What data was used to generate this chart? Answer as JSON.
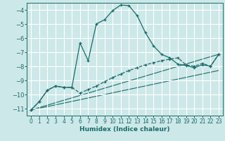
{
  "xlabel": "Humidex (Indice chaleur)",
  "bg_color": "#cde8e8",
  "grid_color": "#b8d8d8",
  "line_color": "#1a6b6b",
  "xlim": [
    -0.5,
    23.5
  ],
  "ylim": [
    -11.5,
    -3.5
  ],
  "yticks": [
    -11,
    -10,
    -9,
    -8,
    -7,
    -6,
    -5,
    -4
  ],
  "xticks": [
    0,
    1,
    2,
    3,
    4,
    5,
    6,
    7,
    8,
    9,
    10,
    11,
    12,
    13,
    14,
    15,
    16,
    17,
    18,
    19,
    20,
    21,
    22,
    23
  ],
  "main_curve_x": [
    0,
    1,
    2,
    3,
    4,
    5,
    6,
    7,
    8,
    9,
    10,
    11,
    12,
    13,
    14,
    15,
    16,
    17,
    18,
    19,
    20,
    21,
    22,
    23
  ],
  "main_curve_y": [
    -11.1,
    -10.5,
    -9.7,
    -9.4,
    -9.5,
    -9.5,
    -6.35,
    -7.6,
    -5.0,
    -4.7,
    -4.05,
    -3.65,
    -3.7,
    -4.4,
    -5.6,
    -6.55,
    -7.15,
    -7.4,
    -7.85,
    -7.95,
    -8.1,
    -7.9,
    -8.0,
    -7.15
  ],
  "flat_curve_x": [
    0,
    1,
    2,
    3,
    4,
    5,
    6,
    7,
    8,
    9,
    10,
    11,
    12,
    13,
    14,
    15,
    16,
    17,
    18,
    19,
    20,
    21,
    22,
    23
  ],
  "flat_curve_y": [
    -11.1,
    -10.5,
    -9.7,
    -9.4,
    -9.5,
    -9.5,
    -9.9,
    -9.65,
    -9.4,
    -9.1,
    -8.8,
    -8.55,
    -8.3,
    -8.1,
    -7.9,
    -7.75,
    -7.6,
    -7.5,
    -7.4,
    -7.9,
    -8.0,
    -7.8,
    -8.0,
    -7.15
  ],
  "line1_x": [
    0,
    23
  ],
  "line1_y": [
    -11.1,
    -7.15
  ],
  "line2_x": [
    0,
    23
  ],
  "line2_y": [
    -11.1,
    -8.3
  ]
}
